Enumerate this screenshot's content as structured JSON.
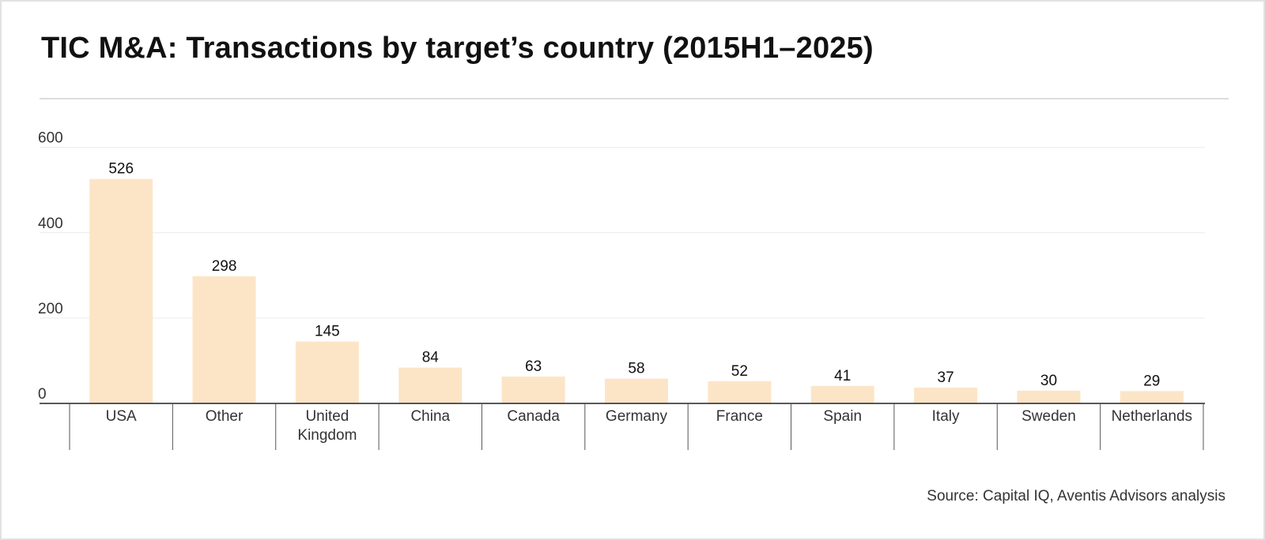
{
  "chart_data": {
    "type": "bar",
    "title": "TIC M&A: Transactions by target’s country (2015H1–2025)",
    "categories": [
      "USA",
      "Other",
      "United Kingdom",
      "China",
      "Canada",
      "Germany",
      "France",
      "Spain",
      "Italy",
      "Sweden",
      "Netherlands"
    ],
    "category_lines": [
      [
        "USA"
      ],
      [
        "Other"
      ],
      [
        "United",
        "Kingdom"
      ],
      [
        "China"
      ],
      [
        "Canada"
      ],
      [
        "Germany"
      ],
      [
        "France"
      ],
      [
        "Spain"
      ],
      [
        "Italy"
      ],
      [
        "Sweden"
      ],
      [
        "Netherlands"
      ]
    ],
    "values": [
      526,
      298,
      145,
      84,
      63,
      58,
      52,
      41,
      37,
      30,
      29
    ],
    "yticks": [
      0,
      200,
      400,
      600
    ],
    "ylim": [
      0,
      600
    ],
    "xlabel": "",
    "ylabel": "",
    "grid": true,
    "legend": "none",
    "bar_color": "#fce5c7",
    "source": "Source: Capital IQ, Aventis Advisors analysis"
  }
}
